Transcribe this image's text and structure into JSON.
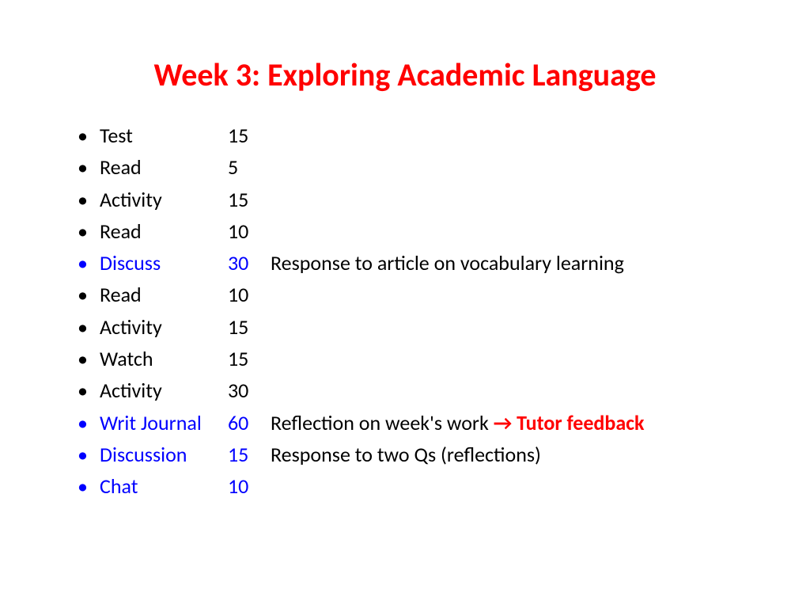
{
  "title": "Week 3: Exploring Academic Language",
  "colors": {
    "title": "#ff0000",
    "body": "#000000",
    "highlight": "#0000ff",
    "feedback": "#ff0000",
    "bullet_normal": "#000000",
    "bullet_highlight": "#0000ff"
  },
  "items": [
    {
      "label": "Test",
      "minutes": "15",
      "note": "",
      "highlight": false,
      "feedback": ""
    },
    {
      "label": "Read",
      "minutes": "5",
      "note": "",
      "highlight": false,
      "feedback": ""
    },
    {
      "label": "Activity",
      "minutes": "15",
      "note": "",
      "highlight": false,
      "feedback": ""
    },
    {
      "label": "Read",
      "minutes": "10",
      "note": "",
      "highlight": false,
      "feedback": ""
    },
    {
      "label": "Discuss",
      "minutes": "30",
      "note": "Response to article on vocabulary learning",
      "highlight": true,
      "feedback": ""
    },
    {
      "label": "Read",
      "minutes": "10",
      "note": "",
      "highlight": false,
      "feedback": ""
    },
    {
      "label": "Activity",
      "minutes": "15",
      "note": "",
      "highlight": false,
      "feedback": ""
    },
    {
      "label": "Watch",
      "minutes": "15",
      "note": "",
      "highlight": false,
      "feedback": ""
    },
    {
      "label": "Activity",
      "minutes": "30",
      "note": "",
      "highlight": false,
      "feedback": ""
    },
    {
      "label": "Writ Journal",
      "minutes": "60",
      "note": "Reflection on week's work ",
      "highlight": true,
      "feedback": "→ Tutor feedback"
    },
    {
      "label": "Discussion",
      "minutes": "15",
      "note": "Response to two Qs (reflections)",
      "highlight": true,
      "feedback": ""
    },
    {
      "label": "Chat",
      "minutes": "10",
      "note": "",
      "highlight": true,
      "feedback": ""
    }
  ]
}
